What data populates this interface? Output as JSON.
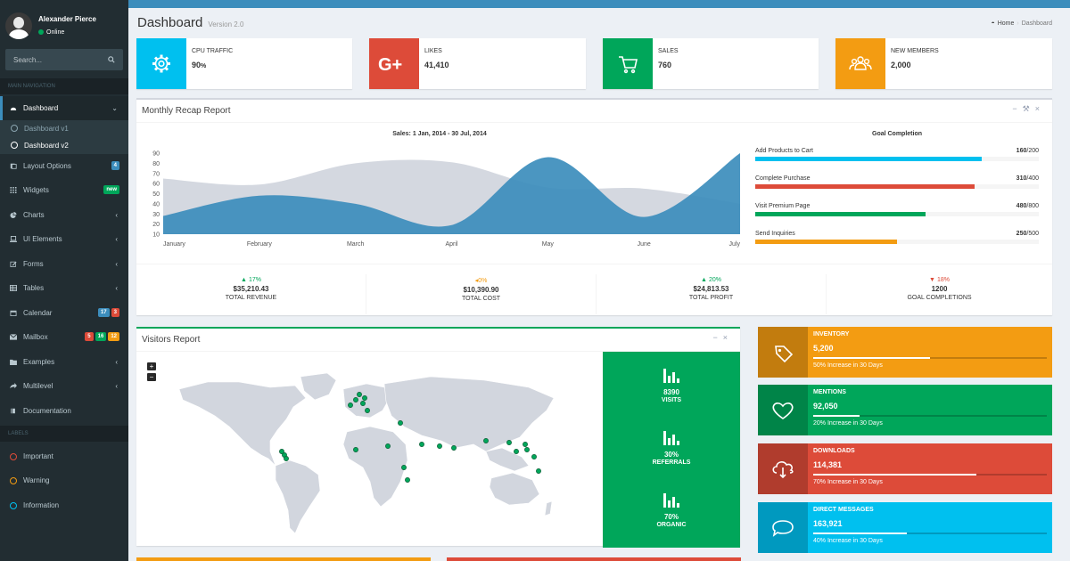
{
  "user": {
    "name": "Alexander Pierce",
    "status": "Online"
  },
  "search": {
    "placeholder": "Search..."
  },
  "nav": {
    "main_header": "MAIN NAVIGATION",
    "labels_header": "LABELS",
    "dashboard": "Dashboard",
    "dashboard_v1": "Dashboard v1",
    "dashboard_v2": "Dashboard v2",
    "items": [
      {
        "label": "Layout Options"
      },
      {
        "label": "Widgets"
      },
      {
        "label": "Charts"
      },
      {
        "label": "UI Elements"
      },
      {
        "label": "Forms"
      },
      {
        "label": "Tables"
      },
      {
        "label": "Calendar"
      },
      {
        "label": "Mailbox"
      },
      {
        "label": "Examples"
      },
      {
        "label": "Multilevel"
      },
      {
        "label": "Documentation"
      }
    ],
    "badges": {
      "layout": "4",
      "widgets": "new",
      "calendar": [
        "17",
        "3"
      ],
      "mailbox": [
        "5",
        "16",
        "12"
      ]
    },
    "labels": [
      {
        "label": "Important",
        "color": "#dd4b39"
      },
      {
        "label": "Warning",
        "color": "#f39c12"
      },
      {
        "label": "Information",
        "color": "#00c0ef"
      }
    ]
  },
  "page": {
    "title": "Dashboard",
    "version": "Version 2.0"
  },
  "breadcrumb": {
    "home": "Home",
    "current": "Dashboard"
  },
  "info_boxes": [
    {
      "label": "CPU TRAFFIC",
      "value": "90",
      "unit": "%",
      "icon": "gear-icon",
      "color": "#00c0ef"
    },
    {
      "label": "LIKES",
      "value": "41,410",
      "icon": "google-plus-icon",
      "color": "#dd4b39"
    },
    {
      "label": "SALES",
      "value": "760",
      "icon": "shopping-cart-icon",
      "color": "#00a65a"
    },
    {
      "label": "NEW MEMBERS",
      "value": "2,000",
      "icon": "users-icon",
      "color": "#f39c12"
    }
  ],
  "recap": {
    "title": "Monthly Recap Report",
    "goal_title": "Goal Completion",
    "goals": [
      {
        "label": "Add Products to Cart",
        "done": "160",
        "total": "200",
        "fraction": 0.8,
        "color": "#00c0ef"
      },
      {
        "label": "Complete Purchase",
        "done": "310",
        "total": "400",
        "fraction": 0.775,
        "color": "#dd4b39"
      },
      {
        "label": "Visit Premium Page",
        "done": "480",
        "total": "800",
        "fraction": 0.6,
        "color": "#00a65a"
      },
      {
        "label": "Send Inquiries",
        "done": "250",
        "total": "500",
        "fraction": 0.5,
        "color": "#f39c12"
      }
    ],
    "footer": [
      {
        "pct": "17%",
        "trend": "up",
        "color": "#00a65a",
        "amount": "$35,210.43",
        "label": "TOTAL REVENUE"
      },
      {
        "pct": "0%",
        "trend": "left",
        "color": "#f39c12",
        "amount": "$10,390.90",
        "label": "TOTAL COST"
      },
      {
        "pct": "20%",
        "trend": "up",
        "color": "#00a65a",
        "amount": "$24,813.53",
        "label": "TOTAL PROFIT"
      },
      {
        "pct": "18%",
        "trend": "down",
        "color": "#dd4b39",
        "amount": "1200",
        "label": "GOAL COMPLETIONS"
      }
    ]
  },
  "chart_data": {
    "type": "area",
    "title": "Sales: 1 Jan, 2014 - 30 Jul, 2014",
    "categories": [
      "January",
      "February",
      "March",
      "April",
      "May",
      "June",
      "July"
    ],
    "yticks": [
      10,
      20,
      30,
      40,
      50,
      60,
      70,
      80,
      90
    ],
    "ylim": [
      10,
      90
    ],
    "series": [
      {
        "values": [
          65,
          59,
          80,
          81,
          56,
          55,
          40
        ],
        "color": "#d2d6de"
      },
      {
        "values": [
          28,
          48,
          40,
          19,
          86,
          27,
          90
        ],
        "color": "#3c8dbc"
      }
    ],
    "grid": false
  },
  "visitors": {
    "title": "Visitors Report",
    "zoom_in": "+",
    "zoom_out": "−",
    "stats": [
      {
        "value": "8390",
        "label": "VISITS"
      },
      {
        "value": "30%",
        "label": "REFERRALS"
      },
      {
        "value": "70%",
        "label": "ORGANIC"
      }
    ]
  },
  "stat_boxes": [
    {
      "label": "INVENTORY",
      "value": "5,200",
      "progress": 0.5,
      "desc": "50% Increase in 30 Days",
      "color": "#f39c12",
      "icon": "tag-icon"
    },
    {
      "label": "MENTIONS",
      "value": "92,050",
      "progress": 0.2,
      "desc": "20% Increase in 30 Days",
      "color": "#00a65a",
      "icon": "heart-icon"
    },
    {
      "label": "DOWNLOADS",
      "value": "114,381",
      "progress": 0.7,
      "desc": "70% Increase in 30 Days",
      "color": "#dd4b39",
      "icon": "cloud-download-icon"
    },
    {
      "label": "DIRECT MESSAGES",
      "value": "163,921",
      "progress": 0.4,
      "desc": "40% Increase in 30 Days",
      "color": "#00c0ef",
      "icon": "comment-icon"
    }
  ]
}
